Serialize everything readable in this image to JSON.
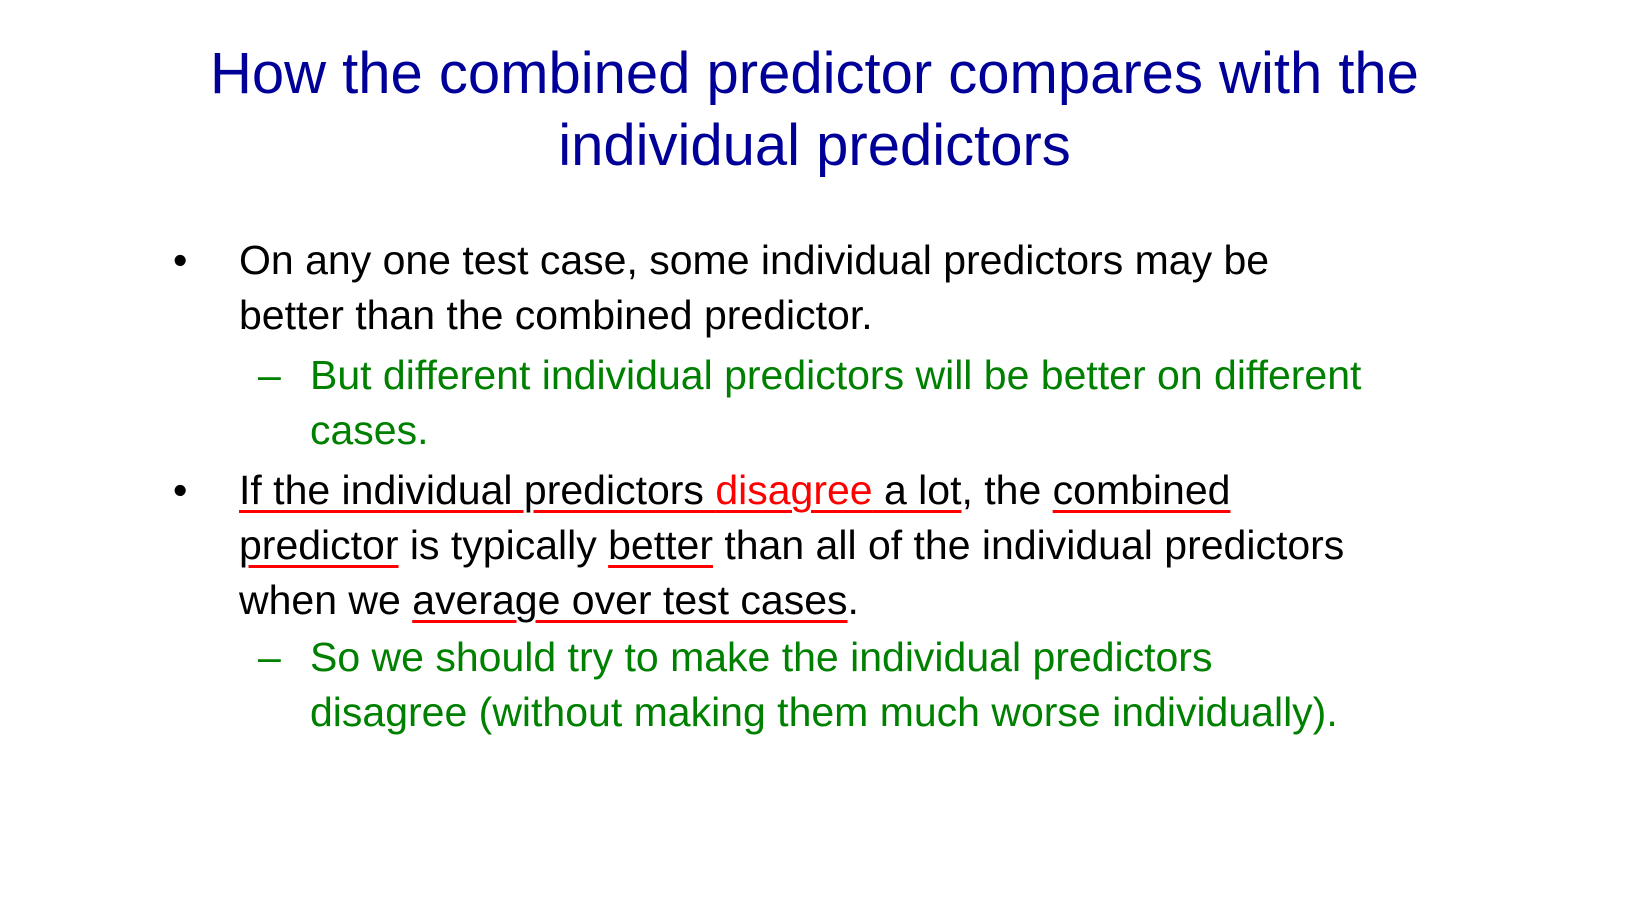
{
  "title": {
    "line1": "How the combined predictor compares with the",
    "line2": "individual predictors"
  },
  "bullet_marker": "•",
  "sub_marker": "–",
  "bullets": [
    {
      "line1": "On any one test case, some individual predictors may be",
      "line2": "better than the combined predictor.",
      "sub": {
        "line1": "But different individual predictors will be better on different",
        "line2": "cases."
      }
    },
    {
      "l1_a": "If the individual predictors ",
      "l1_b": "disagree",
      "l1_c": " a lot",
      "l1_d": ", the ",
      "l1_e": "combined",
      "l2_a": "predictor",
      "l2_b": " is typically ",
      "l2_c": "better",
      "l2_d": " than all of the individual predictors",
      "l3_a": "when we ",
      "l3_b": "average over test cases",
      "l3_c": ".",
      "sub": {
        "line1": "So we should try to make the individual predictors",
        "line2": "disagree (without making them much worse individually)."
      }
    }
  ],
  "colors": {
    "title": "#000099",
    "body": "#000000",
    "sub": "#008000",
    "highlight": "#ff0000"
  }
}
